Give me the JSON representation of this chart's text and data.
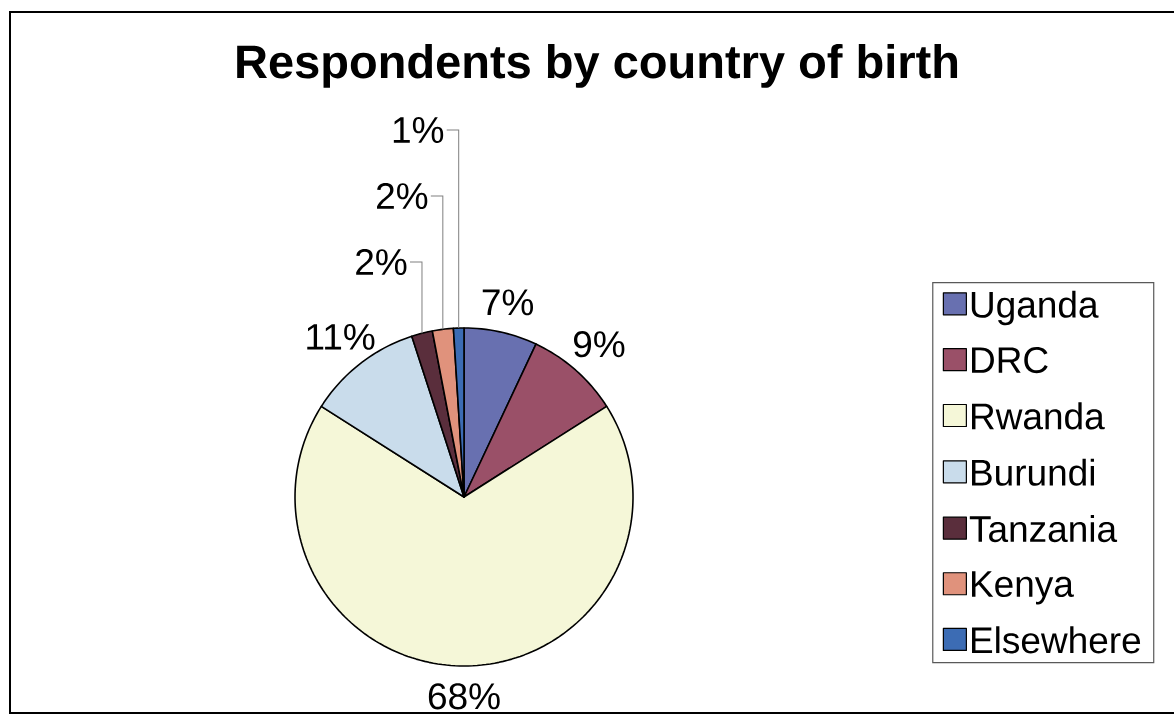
{
  "chart_data": {
    "type": "pie",
    "title": "Respondents by country of birth",
    "categories": [
      "Uganda",
      "DRC",
      "Rwanda",
      "Burundi",
      "Tanzania",
      "Kenya",
      "Elsewhere"
    ],
    "values": [
      7,
      9,
      68,
      11,
      2,
      2,
      1
    ],
    "colors": [
      "#6870b0",
      "#9a5068",
      "#f5f7d8",
      "#c9dceb",
      "#5a2e3c",
      "#e0927c",
      "#3c6cb4"
    ],
    "value_labels": [
      "7%",
      "9%",
      "68%",
      "11%",
      "2%",
      "2%",
      "1%"
    ],
    "legend": "right"
  }
}
